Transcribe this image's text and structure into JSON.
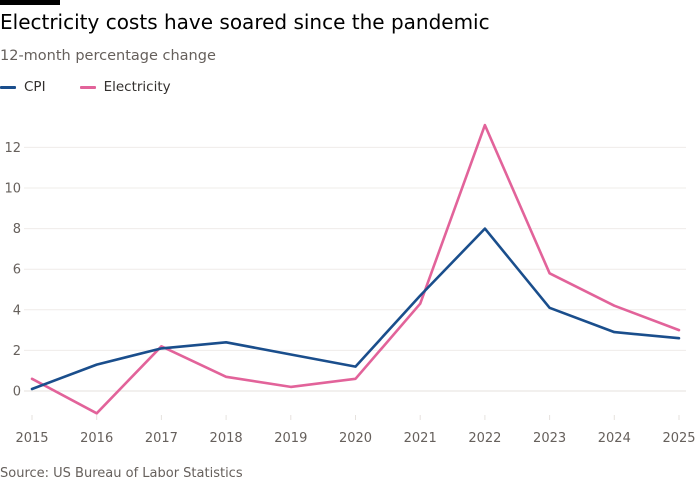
{
  "header": {
    "title": "Electricity costs have soared since the pandemic",
    "subtitle": "12-month percentage change"
  },
  "legend": [
    {
      "label": "CPI",
      "color": "#1a4e8c"
    },
    {
      "label": "Electricity",
      "color": "#e2639a"
    }
  ],
  "footer": {
    "source": "Source: US Bureau of Labor Statistics"
  },
  "chart_data": {
    "type": "line",
    "title": "Electricity costs have soared since the pandemic",
    "subtitle": "12-month percentage change",
    "xlabel": "",
    "ylabel": "",
    "x": [
      2015,
      2016,
      2017,
      2018,
      2019,
      2020,
      2021,
      2022,
      2023,
      2024,
      2025
    ],
    "x_ticks": [
      "2015",
      "2016",
      "2017",
      "2018",
      "2019",
      "2020",
      "2021",
      "2022",
      "2023",
      "2024",
      "2025"
    ],
    "y_ticks": [
      0,
      2,
      4,
      6,
      8,
      10,
      12
    ],
    "ylim": [
      -1.2,
      13
    ],
    "grid": true,
    "legend_position": "top-left",
    "series": [
      {
        "name": "CPI",
        "color": "#1a4e8c",
        "values": [
          0.1,
          1.3,
          2.1,
          2.4,
          1.8,
          1.2,
          4.7,
          8.0,
          4.1,
          2.9,
          2.6
        ]
      },
      {
        "name": "Electricity",
        "color": "#e2639a",
        "values": [
          0.6,
          -1.1,
          2.2,
          0.7,
          0.2,
          0.6,
          4.3,
          13.1,
          5.8,
          4.2,
          3.0
        ]
      }
    ]
  }
}
